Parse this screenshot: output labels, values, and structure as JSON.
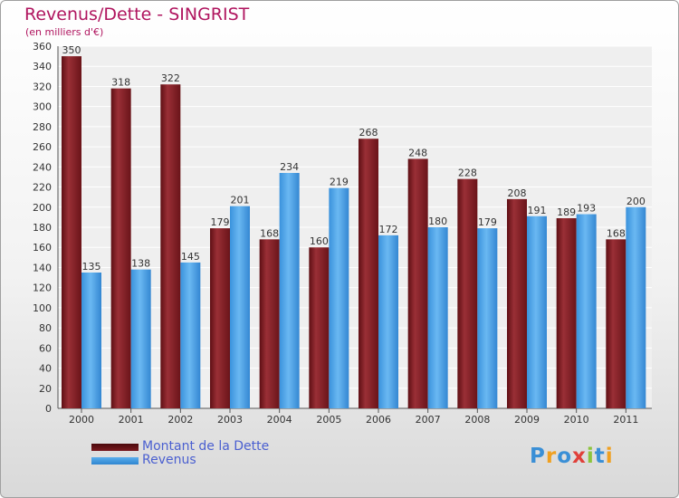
{
  "chart_data": {
    "type": "bar",
    "title": "Revenus/Dette - SINGRIST",
    "subtitle": "(en milliers d'€)",
    "categories": [
      "2000",
      "2001",
      "2002",
      "2003",
      "2004",
      "2005",
      "2006",
      "2007",
      "2008",
      "2009",
      "2010",
      "2011"
    ],
    "series": [
      {
        "name": "Montant de la Dette",
        "values": [
          350,
          318,
          322,
          179,
          168,
          160,
          268,
          248,
          228,
          208,
          189,
          168
        ],
        "color": "#7a1a1f"
      },
      {
        "name": "Revenus",
        "values": [
          135,
          138,
          145,
          201,
          234,
          219,
          172,
          180,
          179,
          191,
          193,
          200
        ],
        "color": "#3d9be0"
      }
    ],
    "ylim": [
      0,
      360
    ],
    "yticks": [
      0,
      20,
      40,
      60,
      80,
      100,
      120,
      140,
      160,
      180,
      200,
      220,
      240,
      260,
      280,
      300,
      320,
      340,
      360
    ],
    "xlabel": "",
    "ylabel": "",
    "grid": true,
    "legend_position": "bottom-left"
  },
  "logo": {
    "text": "Proxiti",
    "letters": [
      "P",
      "r",
      "o",
      "x",
      "i",
      "t",
      "i"
    ],
    "colors": [
      "#3a8fd6",
      "#f0a020",
      "#3a8fd6",
      "#e0403a",
      "#8cc43c",
      "#3a8fd6",
      "#f0a020"
    ]
  }
}
